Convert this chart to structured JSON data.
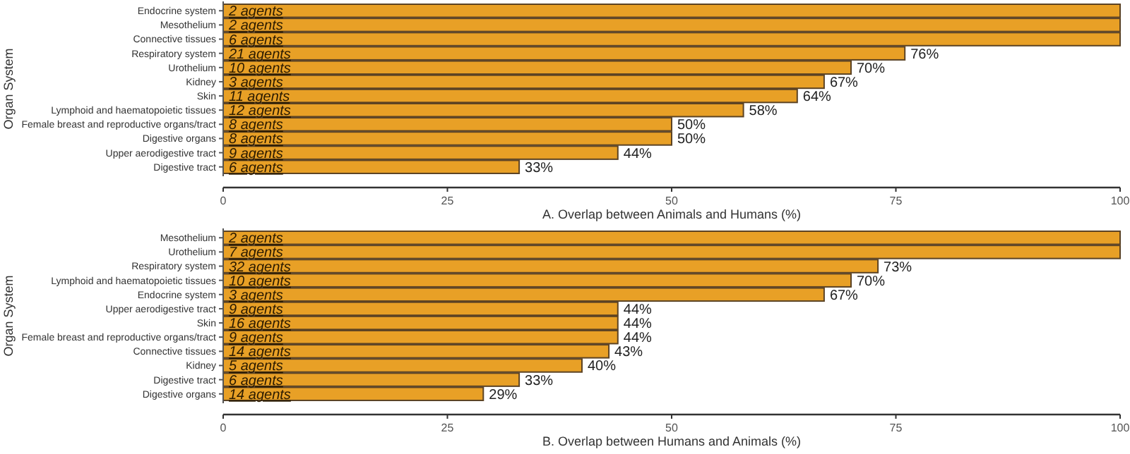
{
  "chart_data": [
    {
      "type": "bar",
      "orientation": "horizontal",
      "xlabel": "A. Overlap between Animals and Humans (%)",
      "ylabel": "Organ System",
      "categories": [
        "Endocrine system",
        "Mesothelium",
        "Connective tissues",
        "Respiratory system",
        "Urothelium",
        "Kidney",
        "Skin",
        "Lymphoid and haematopoietic tissues",
        "Female breast and reproductive organs/tract",
        "Digestive organs",
        "Upper aerodigestive tract",
        "Digestive tract"
      ],
      "values": [
        100,
        100,
        100,
        76,
        70,
        67,
        64,
        58,
        50,
        50,
        44,
        33
      ],
      "value_labels": [
        null,
        null,
        null,
        "76%",
        "70%",
        "67%",
        "64%",
        "58%",
        "50%",
        "50%",
        "44%",
        "33%"
      ],
      "color": "#e8a026",
      "xlim": [
        0,
        100
      ],
      "xticks": [
        0,
        25,
        50,
        75,
        100
      ],
      "grid": false,
      "annotations": [
        {
          "text": "2 agents",
          "y": "Endocrine system"
        },
        {
          "text": "2 agents",
          "y": "Mesothelium"
        },
        {
          "text": "6 agents",
          "y": "Connective tissues"
        },
        {
          "text": "21 agents",
          "y": "Respiratory system"
        },
        {
          "text": "10 agents",
          "y": "Urothelium"
        },
        {
          "text": "3 agents",
          "y": "Kidney"
        },
        {
          "text": "11 agents",
          "y": "Skin"
        },
        {
          "text": "12 agents",
          "y": "Lymphoid and haematopoietic tissues"
        },
        {
          "text": "8 agents",
          "y": "Female breast and reproductive organs/tract"
        },
        {
          "text": "8 agents",
          "y": "Digestive organs"
        },
        {
          "text": "9 agents",
          "y": "Upper aerodigestive tract"
        },
        {
          "text": "6 agents",
          "y": "Digestive tract"
        }
      ]
    },
    {
      "type": "bar",
      "orientation": "horizontal",
      "xlabel": "B. Overlap between Humans and Animals (%)",
      "ylabel": "Organ System",
      "categories": [
        "Mesothelium",
        "Urothelium",
        "Respiratory system",
        "Lymphoid and haematopoietic tissues",
        "Endocrine system",
        "Upper aerodigestive tract",
        "Skin",
        "Female breast and reproductive organs/tract",
        "Connective tissues",
        "Kidney",
        "Digestive tract",
        "Digestive organs"
      ],
      "values": [
        100,
        100,
        73,
        70,
        67,
        44,
        44,
        44,
        43,
        40,
        33,
        29
      ],
      "value_labels": [
        null,
        null,
        "73%",
        "70%",
        "67%",
        "44%",
        "44%",
        "44%",
        "43%",
        "40%",
        "33%",
        "29%"
      ],
      "color": "#e8a026",
      "xlim": [
        0,
        100
      ],
      "xticks": [
        0,
        25,
        50,
        75,
        100
      ],
      "grid": false,
      "annotations": [
        {
          "text": "2 agents",
          "y": "Mesothelium"
        },
        {
          "text": "7 agents",
          "y": "Urothelium"
        },
        {
          "text": "32 agents",
          "y": "Respiratory system"
        },
        {
          "text": "10 agents",
          "y": "Lymphoid and haematopoietic tissues"
        },
        {
          "text": "3 agents",
          "y": "Endocrine system"
        },
        {
          "text": "9 agents",
          "y": "Upper aerodigestive tract"
        },
        {
          "text": "16 agents",
          "y": "Skin"
        },
        {
          "text": "9 agents",
          "y": "Female breast and reproductive organs/tract"
        },
        {
          "text": "14 agents",
          "y": "Connective tissues"
        },
        {
          "text": "5 agents",
          "y": "Kidney"
        },
        {
          "text": "6 agents",
          "y": "Digestive tract"
        },
        {
          "text": "14 agents",
          "y": "Digestive organs"
        }
      ]
    }
  ]
}
